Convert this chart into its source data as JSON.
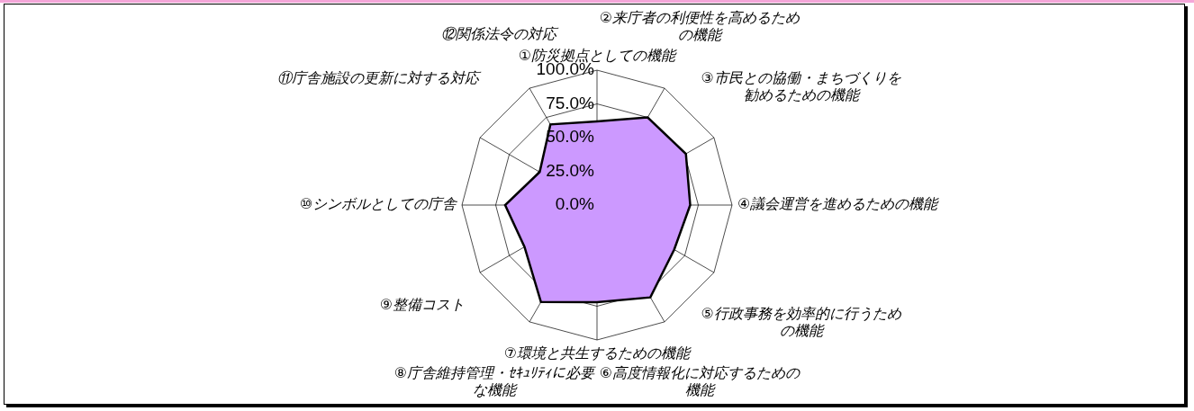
{
  "chart_data": {
    "type": "radar",
    "categories": [
      "①防災拠点としての機能",
      "②来庁者の利便性を高めるための機能",
      "③市民との協働・まちづくりを勧めるための機能",
      "④議会運営を進めるための機能",
      "⑤行政事務を効率的に行うための機能",
      "⑥高度情報化に対応するための機能",
      "⑦環境と共生するための機能",
      "⑧庁舎維持管理・ｾｷｭﾘﾃｨに必要な機能",
      "⑨整備コスト",
      "⑩シンボルとしての庁舎",
      "⑪庁舎施設の更新に対する対応",
      "⑫関係法令の対応"
    ],
    "series": [
      {
        "color": "#cc99ff",
        "values": [
          62,
          75,
          76,
          69,
          66,
          79,
          72,
          83,
          62,
          68,
          49,
          69
        ]
      }
    ],
    "ylim": [
      0,
      100
    ],
    "yticks": [
      {
        "value": 0,
        "label": "0.0%"
      },
      {
        "value": 25,
        "label": "25.0%"
      },
      {
        "value": 50,
        "label": "50.0%"
      },
      {
        "value": 75,
        "label": "75.0%"
      },
      {
        "value": 100,
        "label": "100.0%"
      }
    ],
    "grid": true,
    "legend": false,
    "marker": "none"
  }
}
